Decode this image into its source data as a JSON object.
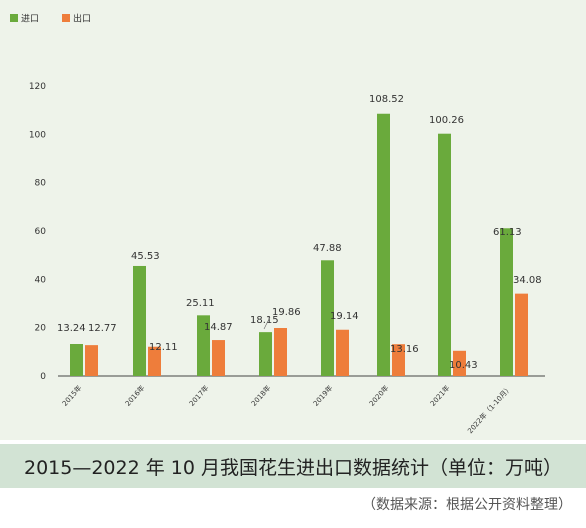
{
  "chart_data": {
    "type": "bar",
    "categories": [
      "2015年",
      "2016年",
      "2017年",
      "2018年",
      "2019年",
      "2020年",
      "2021年",
      "2022年（1-10月）"
    ],
    "series": [
      {
        "name": "进口",
        "color": "#6aaa3c",
        "values": [
          13.24,
          45.53,
          25.11,
          18.15,
          47.88,
          108.52,
          100.26,
          61.13
        ]
      },
      {
        "name": "出口",
        "color": "#ee7d3b",
        "values": [
          12.77,
          12.11,
          14.87,
          19.86,
          19.14,
          13.16,
          10.43,
          34.08
        ]
      }
    ],
    "value_labels": [
      [
        "13.24",
        "45.53",
        "25.11",
        "18.15",
        "47.88",
        "108.52",
        "100.26",
        "61.13"
      ],
      [
        "12.77",
        "12.11",
        "14.87",
        "19.86",
        "19.14",
        "13.16",
        "10.43",
        "34.08"
      ]
    ],
    "yticks": [
      "0",
      "20",
      "40",
      "60",
      "80",
      "100",
      "120"
    ],
    "ylim": [
      0,
      120
    ],
    "title": "2015—2022 年 10 月我国花生进出口数据统计（单位：万吨）",
    "source": "（数据来源：根据公开资料整理）",
    "legend_position": "top-left",
    "grid": false
  }
}
